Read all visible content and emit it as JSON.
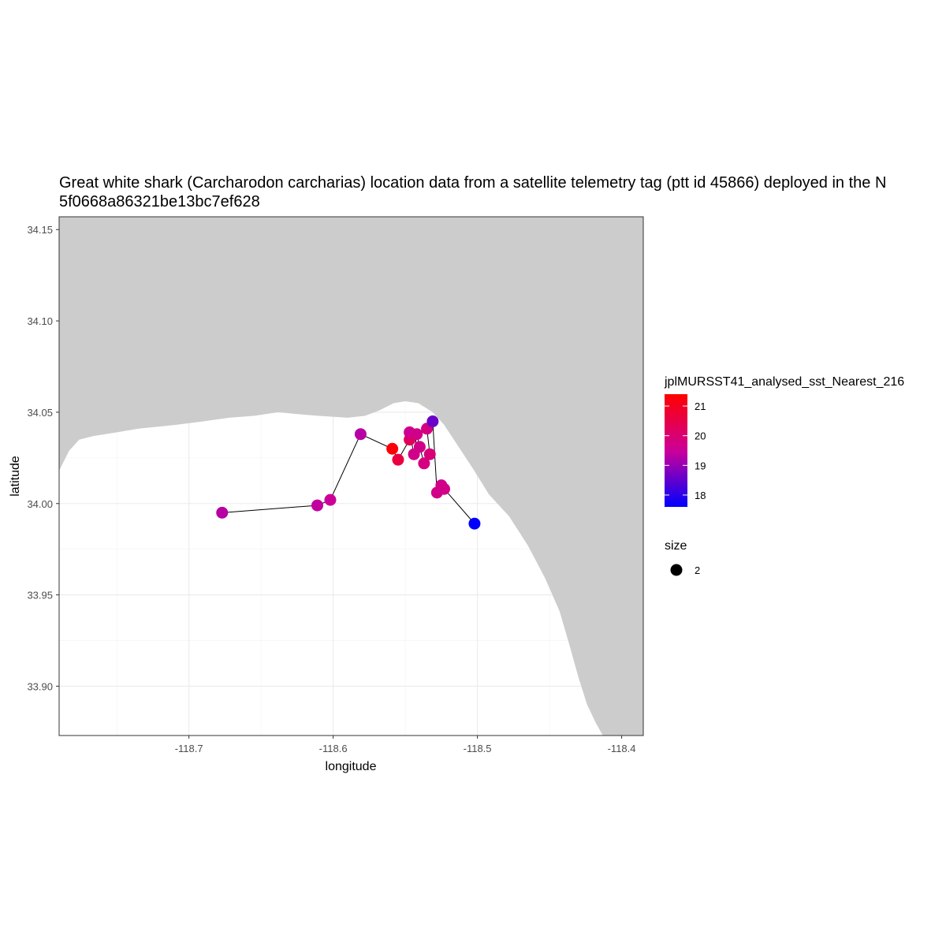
{
  "chart_data": {
    "type": "scatter",
    "title_line1": "Great white shark (Carcharodon carcharias) location data from a satellite telemetry tag (ptt id 45866) deployed in the N",
    "title_line2": "5f0668a86321be13bc7ef628",
    "xlabel": "longitude",
    "ylabel": "latitude",
    "xlim": [
      -118.79,
      -118.385
    ],
    "ylim": [
      33.873,
      34.157
    ],
    "x_ticks": [
      -118.7,
      -118.6,
      -118.5,
      -118.4
    ],
    "x_tick_labels": [
      "-118.7",
      "-118.6",
      "-118.5",
      "-118.4"
    ],
    "y_ticks": [
      33.9,
      33.95,
      34.0,
      34.05,
      34.1,
      34.15
    ],
    "y_tick_labels": [
      "33.90",
      "33.95",
      "34.00",
      "34.05",
      "34.10",
      "34.15"
    ],
    "grid": true,
    "connected_path": true,
    "land_color": "#cccccc",
    "path_color": "#000000",
    "color_scale": {
      "low": "#0000ff",
      "mid": "#cc0099",
      "high": "#ff0000",
      "min": 17.6,
      "max": 21.4
    },
    "coastline": [
      [
        -118.79,
        34.018
      ],
      [
        -118.783,
        34.029
      ],
      [
        -118.776,
        34.035
      ],
      [
        -118.766,
        34.037
      ],
      [
        -118.75,
        34.039
      ],
      [
        -118.735,
        34.041
      ],
      [
        -118.71,
        34.043
      ],
      [
        -118.69,
        34.045
      ],
      [
        -118.672,
        34.047
      ],
      [
        -118.655,
        34.048
      ],
      [
        -118.638,
        34.05
      ],
      [
        -118.625,
        34.049
      ],
      [
        -118.61,
        34.048
      ],
      [
        -118.59,
        34.047
      ],
      [
        -118.578,
        34.048
      ],
      [
        -118.568,
        34.051
      ],
      [
        -118.558,
        34.055
      ],
      [
        -118.55,
        34.056
      ],
      [
        -118.541,
        34.055
      ],
      [
        -118.531,
        34.05
      ],
      [
        -118.523,
        34.043
      ],
      [
        -118.513,
        34.031
      ],
      [
        -118.503,
        34.019
      ],
      [
        -118.492,
        34.005
      ],
      [
        -118.478,
        33.993
      ],
      [
        -118.465,
        33.977
      ],
      [
        -118.453,
        33.959
      ],
      [
        -118.443,
        33.941
      ],
      [
        -118.436,
        33.922
      ],
      [
        -118.43,
        33.905
      ],
      [
        -118.424,
        33.89
      ],
      [
        -118.418,
        33.88
      ],
      [
        -118.413,
        33.873
      ]
    ],
    "series": [
      {
        "x": [
          -118.677,
          -118.611,
          -118.602,
          -118.581,
          -118.559,
          -118.555,
          -118.547,
          -118.547,
          -118.544,
          -118.542,
          -118.54,
          -118.537,
          -118.533,
          -118.535,
          -118.531,
          -118.528,
          -118.525,
          -118.523,
          -118.502
        ],
        "y": [
          33.995,
          33.999,
          34.002,
          34.038,
          34.03,
          34.024,
          34.035,
          34.039,
          34.027,
          34.038,
          34.031,
          34.022,
          34.027,
          34.041,
          34.045,
          34.006,
          34.01,
          34.008,
          33.989
        ],
        "sst": [
          19.3,
          19.4,
          19.5,
          19.3,
          21.3,
          20.6,
          20.3,
          19.6,
          19.7,
          19.7,
          19.7,
          19.8,
          19.9,
          19.8,
          18.6,
          19.7,
          19.7,
          19.7,
          17.6
        ]
      }
    ],
    "legend": {
      "color_title": "jplMURSST41_analysed_sst_Nearest_216",
      "color_ticks": [
        21,
        20,
        19,
        18
      ],
      "color_tick_labels": [
        "21",
        "20",
        "19",
        "18"
      ],
      "size_title": "size",
      "size_label": "2"
    }
  }
}
